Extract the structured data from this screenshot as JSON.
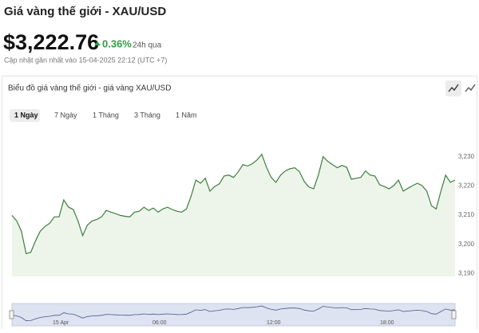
{
  "header": {
    "title": "Giá vàng thế giới - XAU/USD",
    "price": "$3,222.76",
    "change": "0.36%",
    "change_period": "24h qua",
    "updated": "Cập nhật gần nhất vào 15-04-2025 22:12 (UTC +7)"
  },
  "panel": {
    "title": "Biểu đồ giá vàng thế giới - giá vàng XAU/USD",
    "tabs": [
      "1 Ngày",
      "7 Ngày",
      "1 Tháng",
      "3 Tháng",
      "1 Năm"
    ],
    "active_tab": 0
  },
  "navigator": {
    "labels": [
      "15 Apr",
      "06:00",
      "12:00",
      "18:00"
    ]
  },
  "chart_data": {
    "type": "line",
    "color": "#3f7d3f",
    "fill": "#edf5ea",
    "values": [
      3209.9,
      3208,
      3204.5,
      3196.8,
      3197.3,
      3201.2,
      3204.5,
      3206.1,
      3207.2,
      3209.4,
      3209.4,
      3215.2,
      3212.7,
      3211.9,
      3208,
      3203,
      3206.6,
      3208,
      3208.5,
      3209.4,
      3211.6,
      3211,
      3210.5,
      3209.9,
      3209.6,
      3209.4,
      3211,
      3211.3,
      3212.7,
      3211.6,
      3212.4,
      3211,
      3212.1,
      3212.7,
      3211.9,
      3211.3,
      3211,
      3212.1,
      3216.5,
      3222,
      3220.9,
      3222.6,
      3218.2,
      3219.8,
      3220.7,
      3223.4,
      3223.7,
      3222.9,
      3224.8,
      3227.3,
      3226.8,
      3227.6,
      3228.9,
      3230.8,
      3226.4,
      3222.9,
      3221.2,
      3223.7,
      3225.1,
      3225.9,
      3226.2,
      3224.8,
      3221.5,
      3219.6,
      3219,
      3223.7,
      3230,
      3228.4,
      3227.3,
      3226.2,
      3227,
      3226.4,
      3222.3,
      3222.6,
      3222.9,
      3225.1,
      3223.7,
      3223.4,
      3220.4,
      3219.8,
      3219,
      3220.1,
      3222,
      3218.2,
      3219.2,
      3220.1,
      3220.9,
      3220.1,
      3218.2,
      3213.2,
      3212.1,
      3218.2,
      3223.7,
      3221.2,
      3222
    ],
    "ylim": [
      3189,
      3240
    ],
    "yticks": [
      {
        "value": 3190,
        "label": "3,190"
      },
      {
        "value": 3200,
        "label": "3,200"
      },
      {
        "value": 3210,
        "label": "3,210"
      },
      {
        "value": 3220,
        "label": "3,220"
      },
      {
        "value": 3230,
        "label": "3,230"
      }
    ]
  }
}
